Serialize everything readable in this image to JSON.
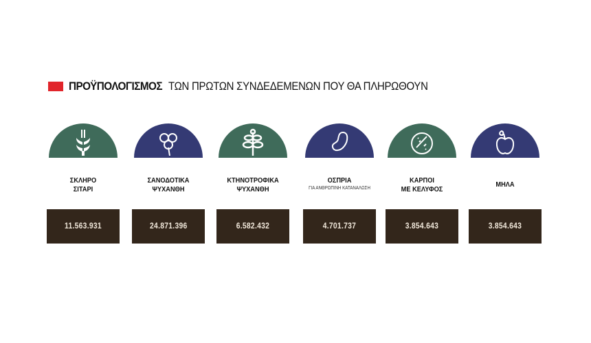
{
  "title": {
    "bold": "ΠΡΟΫΠΟΛΟΓΙΣΜΟΣ",
    "rest": "ΤΩΝ ΠΡΩΤΩΝ ΣΥΝΔΕΔΕΜΕΝΩΝ ΠΟΥ ΘΑ ΠΛΗΡΩΘΟΥΝ",
    "accent": "#e1252b"
  },
  "colors": {
    "green": "#3f6b5a",
    "navy": "#343a74",
    "box": "#33261b"
  },
  "items": [
    {
      "line1": "ΣΚΛΗΡΟ",
      "line2": "ΣΙΤΑΡΙ",
      "sub": "",
      "value": "11.563.931",
      "icon": "wheat-icon",
      "color": "#3f6b5a"
    },
    {
      "line1": "ΣΑΝΟΔΟΤΙΚΑ",
      "line2": "ΨΥΧΑΝΘΗ",
      "sub": "",
      "value": "24.871.396",
      "icon": "clover-icon",
      "color": "#343a74"
    },
    {
      "line1": "ΚΤΗΝΟΤΡΟΦΙΚΑ",
      "line2": "ΨΥΧΑΝΘΗ",
      "sub": "",
      "value": "6.582.432",
      "icon": "leaf-sprig-icon",
      "color": "#3f6b5a"
    },
    {
      "line1": "ΟΣΠΡΙΑ",
      "line2": "",
      "sub": "ΓΙΑ ΑΝΘΡΩΠΙΝΗ ΚΑΤΑΝΑΛΩΣΗ",
      "value": "4.701.737",
      "icon": "bean-icon",
      "color": "#343a74"
    },
    {
      "line1": "ΚΑΡΠΟΙ",
      "line2": "ΜΕ ΚΕΛΥΦΟΣ",
      "sub": "",
      "value": "3.854.643",
      "icon": "nut-icon",
      "color": "#3f6b5a"
    },
    {
      "line1": "ΜΗΛΑ",
      "line2": "",
      "sub": "",
      "value": "3.854.643",
      "icon": "apple-icon",
      "color": "#343a74"
    }
  ]
}
